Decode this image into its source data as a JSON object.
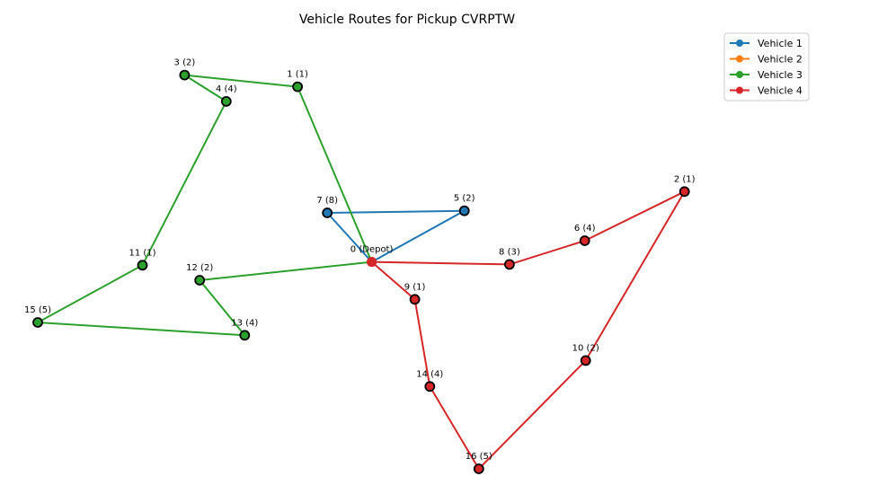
{
  "chart_data": {
    "type": "scatter",
    "title": "Vehicle Routes for Pickup CVRPTW",
    "xlabel": "",
    "ylabel": "",
    "grid": false,
    "axes_visible": false,
    "legend_placement": "top-right",
    "xlim": [
      -0.02,
      1.02
    ],
    "ylim": [
      -0.02,
      1.02
    ],
    "nodes": [
      {
        "id": 0,
        "label": "0 (Depot)",
        "x": 0.4515,
        "y": 0.4944,
        "color": "#d62728",
        "depot": true
      },
      {
        "id": 1,
        "label": "1 (1)",
        "x": 0.3513,
        "y": 0.9129,
        "color": "#2ca02c"
      },
      {
        "id": 2,
        "label": "2 (1)",
        "x": 0.8745,
        "y": 0.6625,
        "color": "#d62728"
      },
      {
        "id": 3,
        "label": "3 (2)",
        "x": 0.1985,
        "y": 0.9407,
        "color": "#2ca02c"
      },
      {
        "id": 4,
        "label": "4 (4)",
        "x": 0.2549,
        "y": 0.8778,
        "color": "#2ca02c"
      },
      {
        "id": 5,
        "label": "5 (2)",
        "x": 0.5768,
        "y": 0.6166,
        "color": "#1f77b4"
      },
      {
        "id": 6,
        "label": "6 (4)",
        "x": 0.7396,
        "y": 0.5451,
        "color": "#d62728"
      },
      {
        "id": 7,
        "label": "7 (8)",
        "x": 0.3915,
        "y": 0.6115,
        "color": "#1f77b4"
      },
      {
        "id": 8,
        "label": "8 (3)",
        "x": 0.6378,
        "y": 0.4885,
        "color": "#d62728"
      },
      {
        "id": 9,
        "label": "9 (1)",
        "x": 0.5098,
        "y": 0.405,
        "color": "#d62728"
      },
      {
        "id": 10,
        "label": "10 (2)",
        "x": 0.7408,
        "y": 0.2589,
        "color": "#d62728"
      },
      {
        "id": 11,
        "label": "11 (1)",
        "x": 0.1416,
        "y": 0.4864,
        "color": "#2ca02c"
      },
      {
        "id": 12,
        "label": "12 (2)",
        "x": 0.2189,
        "y": 0.4507,
        "color": "#2ca02c"
      },
      {
        "id": 13,
        "label": "13 (4)",
        "x": 0.2798,
        "y": 0.3191,
        "color": "#2ca02c"
      },
      {
        "id": 14,
        "label": "14 (4)",
        "x": 0.5301,
        "y": 0.1967,
        "color": "#d62728"
      },
      {
        "id": 15,
        "label": "15 (5)",
        "x": 0.0,
        "y": 0.3498,
        "color": "#2ca02c"
      },
      {
        "id": 16,
        "label": "16 (5)",
        "x": 0.5964,
        "y": 0.0,
        "color": "#d62728"
      }
    ],
    "series": [
      {
        "name": "Vehicle 1",
        "color": "#1f77b4",
        "route": [
          0,
          7,
          5,
          0
        ]
      },
      {
        "name": "Vehicle 2",
        "color": "#ff7f0e",
        "route": []
      },
      {
        "name": "Vehicle 3",
        "color": "#2ca02c",
        "route": [
          0,
          1,
          3,
          4,
          11,
          15,
          13,
          12,
          0
        ]
      },
      {
        "name": "Vehicle 4",
        "color": "#d62728",
        "route": [
          0,
          8,
          6,
          2,
          10,
          16,
          14,
          9,
          0
        ]
      }
    ]
  }
}
